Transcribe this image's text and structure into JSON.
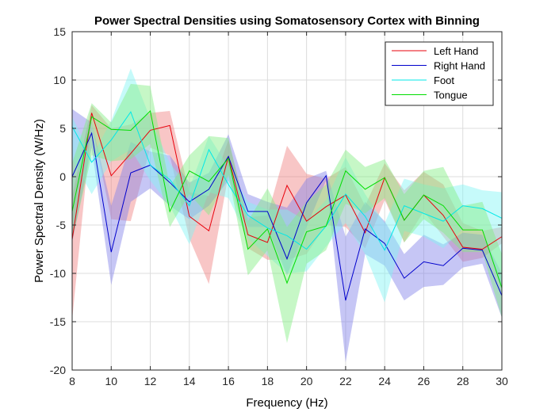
{
  "chart_data": {
    "type": "line",
    "title": "Power Spectral Densities using Somatosensory Cortex with Binning",
    "xlabel": "Frequency (Hz)",
    "ylabel": "Power Spectral Density (W/Hz)",
    "xlim": [
      8,
      30
    ],
    "ylim": [
      -20,
      15
    ],
    "xticks": [
      8,
      10,
      12,
      14,
      16,
      18,
      20,
      22,
      24,
      26,
      28,
      30
    ],
    "yticks": [
      -20,
      -15,
      -10,
      -5,
      0,
      5,
      10,
      15
    ],
    "grid": true,
    "legend_position": "top-right",
    "x": [
      8,
      9,
      10,
      11,
      12,
      13,
      14,
      15,
      16,
      17,
      18,
      19,
      20,
      21,
      22,
      23,
      24,
      25,
      26,
      27,
      28,
      29,
      30
    ],
    "series": [
      {
        "name": "Left Hand",
        "color": "#e8000b",
        "fill": "#f08080",
        "values": [
          -6.5,
          6.6,
          0.1,
          2.4,
          4.8,
          5.3,
          -4.1,
          -5.6,
          2.1,
          -6.0,
          -6.8,
          -0.9,
          -4.6,
          -3.1,
          -1.9,
          -5.8,
          -0.1,
          -4.5,
          -1.9,
          -4.0,
          -7.3,
          -7.5,
          -6.2
        ],
        "upper": [
          -2.0,
          7.4,
          5.0,
          5.4,
          6.6,
          6.8,
          -1.6,
          -2.0,
          3.8,
          -4.2,
          -4.0,
          3.2,
          0.3,
          -0.2,
          1.0,
          -3.0,
          1.4,
          -1.4,
          0.5,
          -0.8,
          -4.8,
          -5.6,
          -5.2
        ],
        "lower": [
          -14.8,
          5.6,
          -4.4,
          -4.6,
          3.0,
          2.2,
          -6.4,
          -11.1,
          0.2,
          -7.4,
          -8.6,
          -8.6,
          -8.0,
          -5.0,
          -5.2,
          -7.4,
          -2.4,
          -6.8,
          -3.6,
          -6.2,
          -8.8,
          -8.4,
          -6.9
        ]
      },
      {
        "name": "Right Hand",
        "color": "#0000cc",
        "fill": "#8080e8",
        "values": [
          0.0,
          4.5,
          -7.8,
          0.4,
          1.2,
          -0.6,
          -2.6,
          -1.3,
          2.1,
          -3.6,
          -3.6,
          -8.5,
          -2.7,
          0.1,
          -12.8,
          -5.4,
          -6.9,
          -10.5,
          -8.8,
          -9.2,
          -7.4,
          -7.6,
          -12.3
        ],
        "upper": [
          7.0,
          5.6,
          -3.0,
          3.6,
          2.6,
          2.2,
          -0.6,
          0.4,
          4.4,
          -1.8,
          -2.6,
          -3.2,
          -0.2,
          0.6,
          -6.2,
          -2.6,
          -4.6,
          -8.0,
          -6.0,
          -7.0,
          -5.8,
          -6.0,
          -10.0
        ],
        "lower": [
          -6.8,
          3.0,
          -11.2,
          -2.6,
          -1.2,
          -3.0,
          -4.4,
          -3.0,
          -0.4,
          -5.2,
          -5.2,
          -10.2,
          -5.2,
          -0.4,
          -19.2,
          -8.0,
          -9.2,
          -12.8,
          -11.4,
          -11.2,
          -9.4,
          -9.0,
          -14.6
        ]
      },
      {
        "name": "Foot",
        "color": "#00e8e8",
        "fill": "#80f4f4",
        "values": [
          5.2,
          1.5,
          3.8,
          6.7,
          1.2,
          -0.3,
          -3.0,
          2.8,
          -0.8,
          -4.0,
          -5.3,
          -6.1,
          -7.5,
          -5.1,
          -1.8,
          -4.1,
          -7.6,
          -3.0,
          -3.8,
          -4.6,
          -3.0,
          -3.3,
          -4.3
        ],
        "upper": [
          6.2,
          2.0,
          5.8,
          11.2,
          6.0,
          1.4,
          -1.2,
          4.2,
          1.0,
          -2.6,
          -3.4,
          -3.4,
          -4.6,
          -2.4,
          2.0,
          -1.8,
          -4.8,
          -0.2,
          -0.8,
          -1.2,
          -0.8,
          -1.4,
          -1.6
        ],
        "lower": [
          1.8,
          -1.8,
          1.6,
          2.8,
          -0.4,
          -3.0,
          -7.0,
          -1.6,
          -2.2,
          -6.4,
          -8.2,
          -10.0,
          -9.8,
          -7.2,
          -4.8,
          -8.0,
          -13.0,
          -5.6,
          -6.2,
          -7.4,
          -5.4,
          -5.4,
          -11.4
        ]
      },
      {
        "name": "Tongue",
        "color": "#00dd00",
        "fill": "#80ee80",
        "values": [
          -3.6,
          6.2,
          4.9,
          4.8,
          6.8,
          -3.6,
          0.6,
          -0.5,
          1.9,
          -7.5,
          -5.4,
          -11.0,
          -5.7,
          -5.1,
          0.6,
          -1.3,
          -0.1,
          -4.5,
          -1.9,
          -3.0,
          -5.5,
          -5.5,
          -11.5
        ],
        "upper": [
          1.4,
          7.6,
          5.6,
          9.6,
          9.4,
          -1.0,
          2.2,
          4.2,
          4.0,
          -4.6,
          -1.2,
          -5.2,
          -2.6,
          -0.8,
          2.8,
          1.0,
          1.8,
          -1.8,
          0.6,
          1.0,
          -3.0,
          -2.6,
          -8.0
        ],
        "lower": [
          -6.6,
          2.2,
          1.6,
          1.8,
          3.4,
          -5.2,
          -1.8,
          -4.0,
          0.2,
          -10.2,
          -7.6,
          -17.2,
          -9.0,
          -7.6,
          -2.8,
          -3.8,
          -2.2,
          -6.8,
          -4.4,
          -5.8,
          -7.8,
          -7.8,
          -14.6
        ]
      }
    ]
  }
}
